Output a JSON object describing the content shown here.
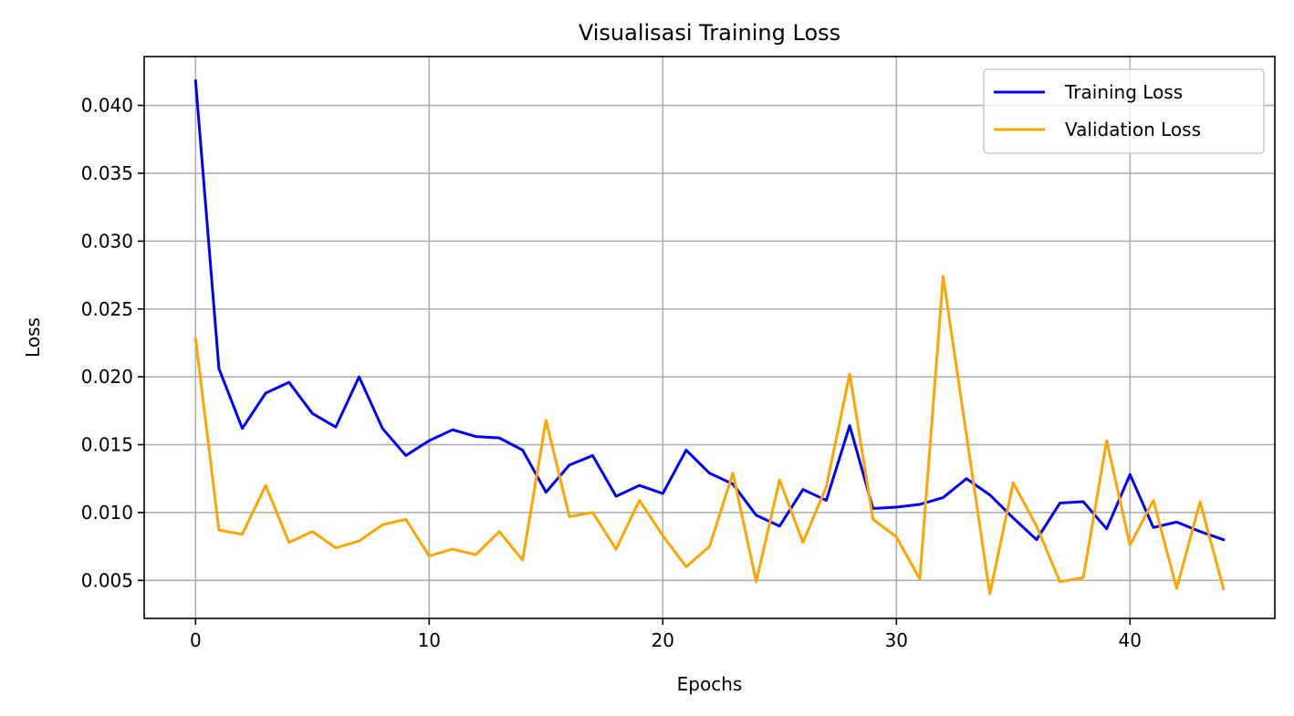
{
  "chart_data": {
    "type": "line",
    "title": "Visualisasi Training Loss",
    "xlabel": "Epochs",
    "ylabel": "Loss",
    "xlim": [
      -2.2,
      46.2
    ],
    "ylim": [
      0.0022,
      0.0436
    ],
    "xticks": [
      0,
      10,
      20,
      30,
      40
    ],
    "xtick_labels": [
      "0",
      "10",
      "20",
      "30",
      "40"
    ],
    "yticks": [
      0.005,
      0.01,
      0.015,
      0.02,
      0.025,
      0.03,
      0.035,
      0.04
    ],
    "ytick_labels": [
      "0.005",
      "0.010",
      "0.015",
      "0.020",
      "0.025",
      "0.030",
      "0.035",
      "0.040"
    ],
    "grid": true,
    "legend_position": "top-right",
    "x": [
      0,
      1,
      2,
      3,
      4,
      5,
      6,
      7,
      8,
      9,
      10,
      11,
      12,
      13,
      14,
      15,
      16,
      17,
      18,
      19,
      20,
      21,
      22,
      23,
      24,
      25,
      26,
      27,
      28,
      29,
      30,
      31,
      32,
      33,
      34,
      35,
      36,
      37,
      38,
      39,
      40,
      41,
      42,
      43,
      44
    ],
    "series": [
      {
        "name": "Training Loss",
        "color": "#0000ff",
        "values": [
          0.0418,
          0.0206,
          0.0162,
          0.0188,
          0.0196,
          0.0173,
          0.0163,
          0.02,
          0.0162,
          0.0142,
          0.0153,
          0.0161,
          0.0156,
          0.0155,
          0.0146,
          0.0115,
          0.0135,
          0.0142,
          0.0112,
          0.012,
          0.0114,
          0.0146,
          0.0129,
          0.0121,
          0.0098,
          0.009,
          0.0117,
          0.0109,
          0.0164,
          0.0103,
          0.0104,
          0.0106,
          0.0111,
          0.0125,
          0.0113,
          0.0096,
          0.008,
          0.0107,
          0.0108,
          0.0088,
          0.0128,
          0.0089,
          0.0093,
          0.0086,
          0.008
        ]
      },
      {
        "name": "Validation Loss",
        "color": "#ffa500",
        "values": [
          0.0228,
          0.0087,
          0.0084,
          0.012,
          0.0078,
          0.0086,
          0.0074,
          0.0079,
          0.0091,
          0.0095,
          0.0068,
          0.0073,
          0.0069,
          0.0086,
          0.0065,
          0.0168,
          0.0097,
          0.01,
          0.0073,
          0.0109,
          0.0083,
          0.006,
          0.0075,
          0.0129,
          0.0049,
          0.0124,
          0.0078,
          0.0119,
          0.0202,
          0.0095,
          0.0082,
          0.0051,
          0.0274,
          0.0157,
          0.004,
          0.0122,
          0.009,
          0.0049,
          0.0052,
          0.0153,
          0.0076,
          0.0109,
          0.0044,
          0.0108,
          0.0044
        ]
      }
    ]
  }
}
